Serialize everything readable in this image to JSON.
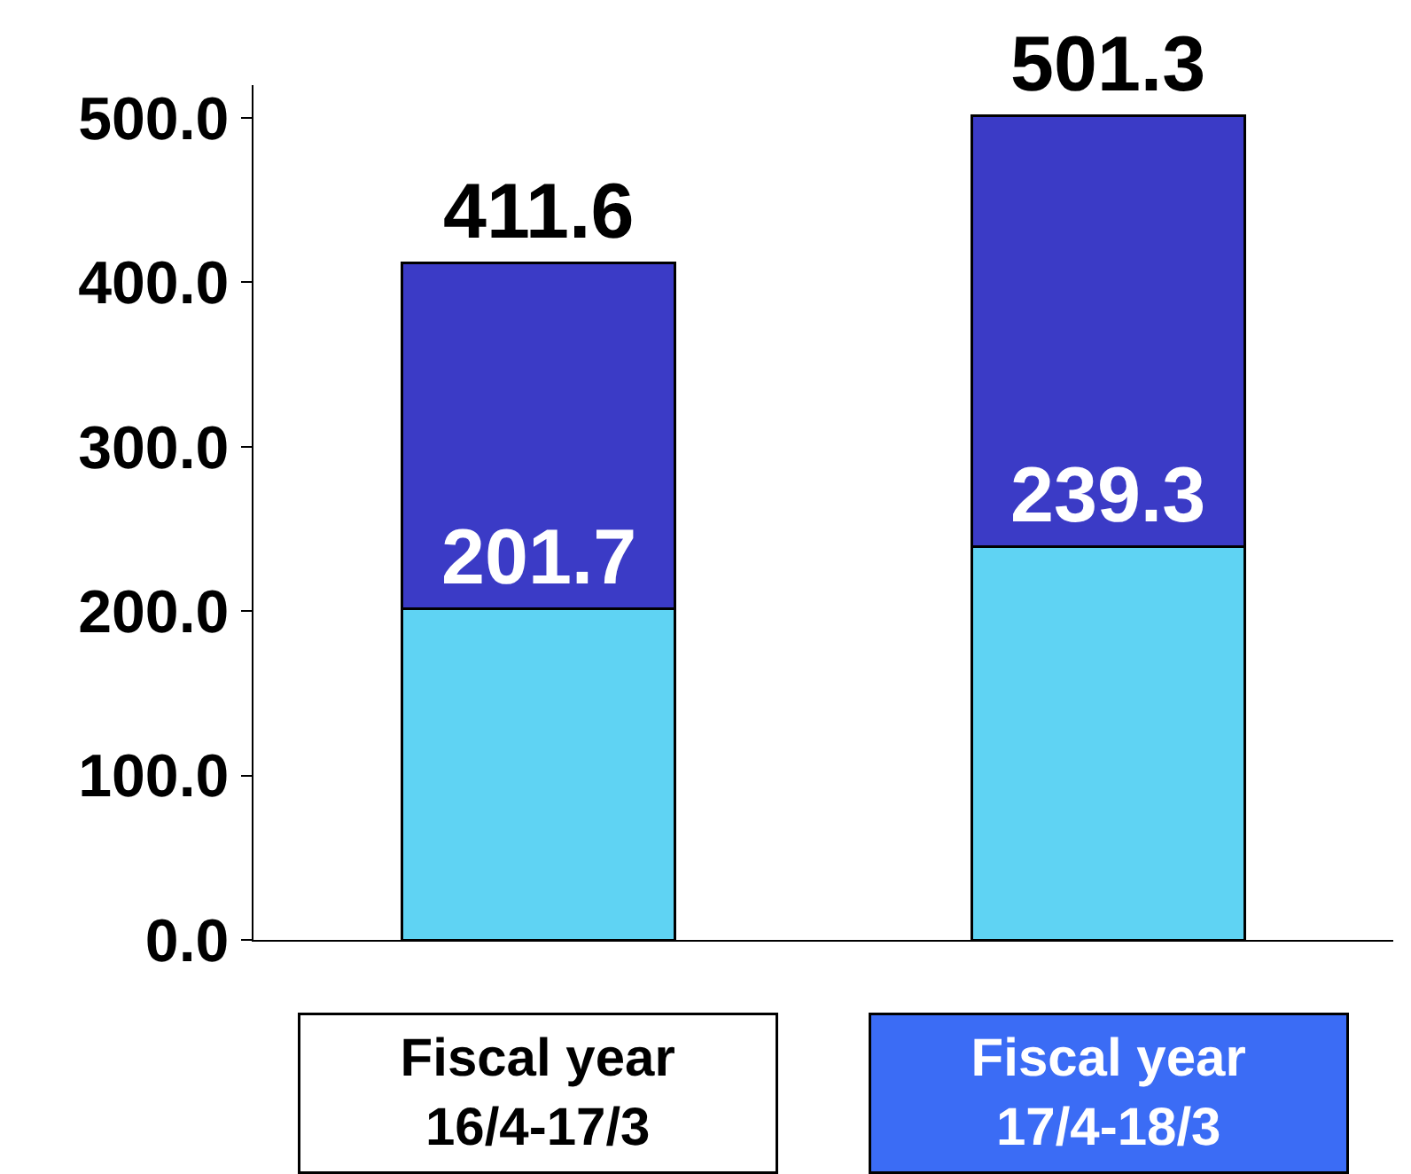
{
  "chart_data": {
    "type": "bar",
    "stacked": true,
    "categories": [
      "Fiscal year\n16/4-17/3",
      "Fiscal year\n17/4-18/3"
    ],
    "series": [
      {
        "color": "#5fd3f3",
        "values": [
          201.7,
          239.3
        ],
        "value_labels": [
          "201.7",
          "239.3"
        ]
      },
      {
        "color": "#3b3bc6",
        "values": [
          210,
          262
        ]
      }
    ],
    "totals": [
      "411.6",
      "501.3"
    ],
    "ylim": [
      0,
      520
    ],
    "yticks": [
      {
        "value": 0,
        "label": "0.0"
      },
      {
        "value": 100,
        "label": "100.0"
      },
      {
        "value": 200,
        "label": "200.0"
      },
      {
        "value": 300,
        "label": "300.0"
      },
      {
        "value": 400,
        "label": "400.0"
      },
      {
        "value": 500,
        "label": "500.0"
      }
    ]
  }
}
